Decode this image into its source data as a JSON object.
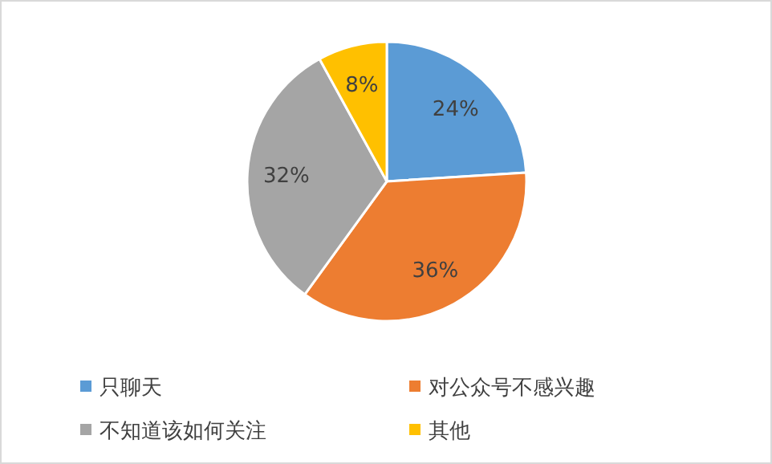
{
  "chart_data": {
    "type": "pie",
    "categories": [
      "只聊天",
      "对公众号不感兴趣",
      "不知道该如何关注",
      "其他"
    ],
    "values": [
      24,
      36,
      32,
      8
    ],
    "colors": [
      "#5b9bd5",
      "#ed7d31",
      "#a5a5a5",
      "#ffc000"
    ],
    "value_labels": [
      "24%",
      "36%",
      "32%",
      "8%"
    ],
    "legend": "bottom"
  }
}
